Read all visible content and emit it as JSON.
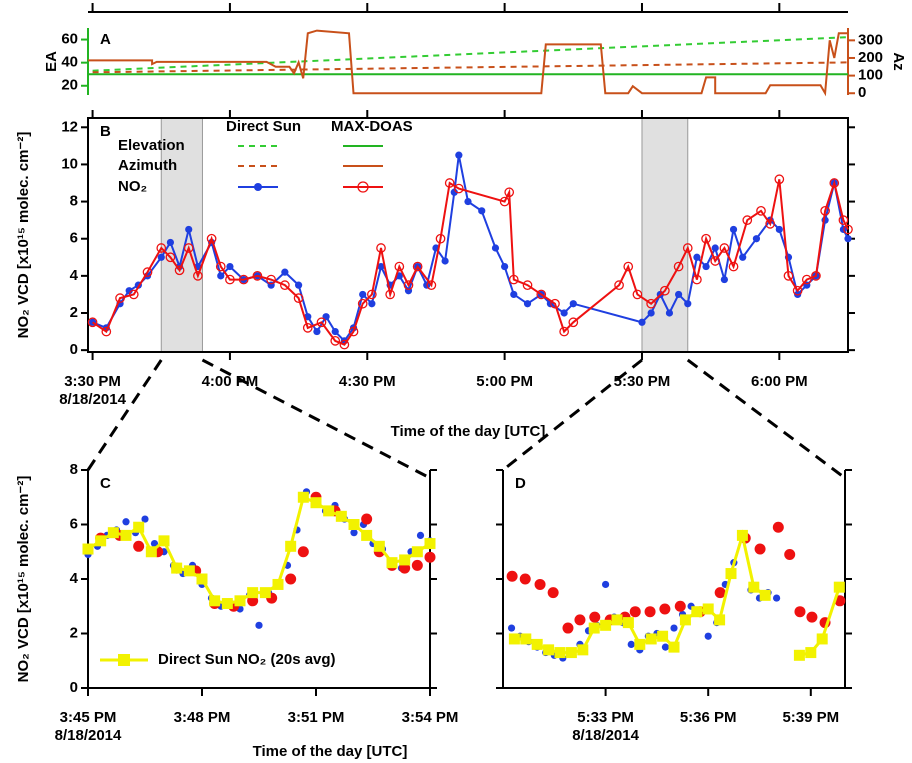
{
  "chart_data": [
    {
      "type": "line",
      "label": "A",
      "ylabel": "EA",
      "y2label": "Az",
      "xlim": [
        "15:29",
        "18:15"
      ],
      "ylim": [
        12,
        70
      ],
      "yticks": [
        20,
        40,
        60
      ],
      "y2lim": [
        -10,
        370
      ],
      "y2ticks": [
        0,
        100,
        200,
        300
      ],
      "ycolor": "#22b422",
      "y2color": "#c8501a",
      "series": [
        {
          "color": "#33cc33",
          "dash": true,
          "x": [
            "15:30",
            "18:15"
          ],
          "values": [
            33,
            62
          ]
        },
        {
          "color": "#c8501a",
          "dash": true,
          "axis": "y2",
          "x": [
            "15:30",
            "18:15"
          ],
          "values": [
            119,
            175
          ]
        },
        {
          "color": "#22b422",
          "x": [
            "15:29",
            "18:15"
          ],
          "values": [
            30,
            30
          ]
        },
        {
          "color": "#c8501a",
          "axis": "y2",
          "x": [
            "15:29",
            "15:43",
            "15:43",
            "15:44",
            "16:08",
            "16:10",
            "16:13",
            "16:14",
            "16:15",
            "16:16",
            "16:17",
            "16:19",
            "16:26",
            "16:27",
            "17:08",
            "17:09",
            "17:21",
            "17:22",
            "17:27",
            "17:28",
            "17:30",
            "17:43",
            "17:44",
            "17:46",
            "17:46",
            "17:57",
            "17:58",
            "18:09",
            "18:10",
            "18:11",
            "18:12",
            "18:13",
            "18:15"
          ],
          "values": [
            186,
            186,
            165,
            178,
            178,
            150,
            150,
            113,
            175,
            85,
            340,
            355,
            340,
            0,
            0,
            277,
            277,
            0,
            0,
            40,
            0,
            0,
            90,
            90,
            0,
            0,
            45,
            45,
            0,
            300,
            200,
            340,
            340
          ]
        }
      ]
    },
    {
      "type": "line",
      "label": "B",
      "ylabel": "NO₂ VCD [x10¹⁵ molec. cm⁻²]",
      "xlabel": "Time of the day [UTC]",
      "xlim": [
        "15:29",
        "18:15"
      ],
      "xticks": [
        {
          "value": "15:30",
          "label": "3:30 PM",
          "date": "8/18/2014"
        },
        {
          "value": "16:00",
          "label": "4:00 PM"
        },
        {
          "value": "16:30",
          "label": "4:30 PM"
        },
        {
          "value": "17:00",
          "label": "5:00 PM"
        },
        {
          "value": "17:30",
          "label": "5:30 PM"
        },
        {
          "value": "18:00",
          "label": "6:00 PM"
        }
      ],
      "ylim": [
        -0.1,
        12.5
      ],
      "yticks": [
        0,
        2,
        4,
        6,
        8,
        10,
        12
      ],
      "legend": {
        "columns": [
          "Direct Sun",
          "MAX-DOAS"
        ],
        "rows": [
          "Elevation",
          "Azimuth",
          "NO₂"
        ]
      },
      "series": [
        {
          "color": "#1f3fe0",
          "marker": "dot",
          "x": [
            "15:30",
            "15:33",
            "15:36",
            "15:38",
            "15:40",
            "15:42",
            "15:45",
            "15:47",
            "15:49",
            "15:51",
            "15:53",
            "15:56",
            "15:58",
            "16:00",
            "16:03",
            "16:06",
            "16:09",
            "16:12",
            "16:15",
            "16:17",
            "16:19",
            "16:21",
            "16:23",
            "16:25",
            "16:27",
            "16:29",
            "16:31",
            "16:33",
            "16:35",
            "16:37",
            "16:39",
            "16:41",
            "16:43",
            "16:45",
            "16:47",
            "16:49",
            "16:50",
            "16:52",
            "16:55",
            "16:58",
            "17:00",
            "17:02",
            "17:05",
            "17:08",
            "17:10",
            "17:13",
            "17:15",
            "17:30",
            "17:32",
            "17:34",
            "17:36",
            "17:38",
            "17:40",
            "17:42",
            "17:44",
            "17:46",
            "17:48",
            "17:50",
            "17:52",
            "17:55",
            "17:58",
            "18:00",
            "18:02",
            "18:04",
            "18:06",
            "18:08",
            "18:10",
            "18:12",
            "18:14",
            "18:15"
          ],
          "values": [
            1.5,
            1.2,
            2.5,
            3.2,
            3.5,
            4.0,
            5.0,
            5.8,
            4.5,
            6.5,
            4.5,
            5.8,
            4.0,
            4.5,
            3.8,
            4.0,
            3.5,
            4.2,
            3.5,
            1.8,
            1.0,
            1.8,
            1.0,
            0.5,
            1.2,
            3.0,
            2.5,
            4.5,
            3.5,
            4.0,
            3.2,
            4.5,
            3.5,
            5.5,
            4.8,
            8.5,
            10.5,
            8.0,
            7.5,
            5.5,
            4.5,
            3.0,
            2.5,
            3.0,
            2.5,
            2.0,
            2.5,
            1.5,
            2.0,
            3.0,
            2.0,
            3.0,
            2.5,
            5.0,
            4.5,
            5.5,
            3.8,
            6.5,
            5.0,
            6.0,
            7.0,
            6.5,
            5.0,
            3.0,
            3.5,
            4.0,
            7.0,
            9.0,
            6.5,
            6.0
          ]
        },
        {
          "color": "#ee1111",
          "marker": "ring",
          "x": [
            "15:30",
            "15:33",
            "15:36",
            "15:39",
            "15:42",
            "15:45",
            "15:47",
            "15:49",
            "15:51",
            "15:53",
            "15:56",
            "15:58",
            "16:00",
            "16:03",
            "16:06",
            "16:09",
            "16:12",
            "16:15",
            "16:17",
            "16:20",
            "16:23",
            "16:25",
            "16:27",
            "16:29",
            "16:31",
            "16:33",
            "16:35",
            "16:37",
            "16:39",
            "16:41",
            "16:44",
            "16:46",
            "16:48",
            "16:50",
            "17:00",
            "17:01",
            "17:02",
            "17:05",
            "17:08",
            "17:11",
            "17:13",
            "17:15",
            "17:25",
            "17:27",
            "17:29",
            "17:32",
            "17:35",
            "17:38",
            "17:40",
            "17:42",
            "17:44",
            "17:46",
            "17:48",
            "17:50",
            "17:53",
            "17:56",
            "17:58",
            "18:00",
            "18:02",
            "18:04",
            "18:06",
            "18:08",
            "18:10",
            "18:12",
            "18:14",
            "18:15"
          ],
          "values": [
            1.5,
            1.0,
            2.8,
            3.0,
            4.2,
            5.5,
            5.0,
            4.3,
            5.5,
            4.0,
            6.0,
            4.5,
            3.8,
            3.8,
            4.0,
            3.8,
            3.5,
            2.8,
            1.2,
            1.5,
            0.5,
            0.3,
            1.0,
            2.5,
            3.0,
            5.5,
            3.0,
            4.5,
            3.5,
            4.5,
            3.5,
            6.0,
            9.0,
            8.7,
            8.0,
            8.5,
            3.8,
            3.5,
            3.0,
            2.5,
            1.0,
            1.5,
            3.5,
            4.5,
            3.0,
            2.5,
            3.2,
            4.5,
            5.5,
            3.8,
            6.0,
            4.8,
            5.5,
            4.5,
            7.0,
            7.5,
            6.8,
            9.2,
            4.0,
            3.2,
            3.8,
            4.0,
            7.5,
            9.0,
            7.0,
            6.5
          ]
        }
      ]
    },
    {
      "type": "line",
      "label": "C",
      "ylabel": "NO₂ VCD [x10¹⁵ molec. cm⁻²]",
      "xlabel": "Time of the day [UTC]",
      "xlim": [
        "15:45",
        "15:54"
      ],
      "xticks": [
        {
          "value": "15:45",
          "label": "3:45 PM",
          "date": "8/18/2014"
        },
        {
          "value": "15:48",
          "label": "3:48 PM"
        },
        {
          "value": "15:51",
          "label": "3:51 PM"
        },
        {
          "value": "15:54",
          "label": "3:54 PM"
        }
      ],
      "ylim": [
        0,
        8
      ],
      "yticks": [
        0,
        2,
        4,
        6,
        8
      ],
      "series": [
        {
          "color": "#1f3fe0",
          "marker": "dot",
          "line": false,
          "x": [
            "15:45:00",
            "15:45:15",
            "15:45:30",
            "15:45:45",
            "15:46:00",
            "15:46:15",
            "15:46:30",
            "15:46:45",
            "15:47:00",
            "15:47:15",
            "15:47:30",
            "15:47:45",
            "15:48:00",
            "15:48:15",
            "15:48:30",
            "15:48:45",
            "15:49:00",
            "15:49:15",
            "15:49:30",
            "15:49:45",
            "15:50:00",
            "15:50:15",
            "15:50:30",
            "15:50:45",
            "15:51:00",
            "15:51:15",
            "15:51:30",
            "15:51:45",
            "15:52:00",
            "15:52:15",
            "15:52:30",
            "15:52:45",
            "15:53:00",
            "15:53:15",
            "15:53:30",
            "15:53:45",
            "15:54:00"
          ],
          "values": [
            4.9,
            5.2,
            5.6,
            5.8,
            6.1,
            5.7,
            6.2,
            5.3,
            5.0,
            4.5,
            4.2,
            4.5,
            3.8,
            3.3,
            3.0,
            3.1,
            2.9,
            3.4,
            2.3,
            3.5,
            3.8,
            4.5,
            5.8,
            7.2,
            6.8,
            6.5,
            6.7,
            6.2,
            5.7,
            6.0,
            5.3,
            5.1,
            4.6,
            4.4,
            5.0,
            5.6,
            5.4
          ]
        },
        {
          "color": "#ee1111",
          "marker": "big",
          "line": false,
          "x": [
            "15:45:20",
            "15:45:50",
            "15:46:20",
            "15:46:50",
            "15:47:20",
            "15:47:50",
            "15:48:20",
            "15:48:50",
            "15:49:20",
            "15:49:50",
            "15:50:20",
            "15:50:40",
            "15:51:00",
            "15:51:30",
            "15:52:00",
            "15:52:20",
            "15:52:40",
            "15:53:00",
            "15:53:20",
            "15:53:40",
            "15:54:00"
          ],
          "values": [
            5.5,
            5.6,
            5.2,
            5.0,
            4.4,
            4.3,
            3.1,
            3.0,
            3.2,
            3.3,
            4.0,
            5.0,
            7.0,
            6.5,
            6.0,
            6.2,
            5.0,
            4.5,
            4.4,
            4.5,
            4.8
          ]
        },
        {
          "name": "Direct Sun NO₂ (20s avg)",
          "color": "#f2f200",
          "marker": "square",
          "x": [
            "15:45:00",
            "15:45:20",
            "15:45:40",
            "15:46:00",
            "15:46:20",
            "15:46:40",
            "15:47:00",
            "15:47:20",
            "15:47:40",
            "15:48:00",
            "15:48:20",
            "15:48:40",
            "15:49:00",
            "15:49:20",
            "15:49:40",
            "15:50:00",
            "15:50:20",
            "15:50:40",
            "15:51:00",
            "15:51:20",
            "15:51:40",
            "15:52:00",
            "15:52:20",
            "15:52:40",
            "15:53:00",
            "15:53:20",
            "15:53:40",
            "15:54:00"
          ],
          "values": [
            5.1,
            5.4,
            5.7,
            5.6,
            5.9,
            5.0,
            5.4,
            4.4,
            4.3,
            4.0,
            3.2,
            3.1,
            3.2,
            3.5,
            3.5,
            3.8,
            5.2,
            7.0,
            6.8,
            6.5,
            6.3,
            6.0,
            5.6,
            5.2,
            4.6,
            4.7,
            5.0,
            5.3
          ]
        }
      ]
    },
    {
      "type": "line",
      "label": "D",
      "xlim": [
        "17:30",
        "17:40"
      ],
      "xticks": [
        {
          "value": "17:33",
          "label": "5:33 PM",
          "date": "8/18/2014"
        },
        {
          "value": "17:36",
          "label": "5:36 PM"
        },
        {
          "value": "17:39",
          "label": "5:39 PM"
        }
      ],
      "ylim": [
        0,
        8
      ],
      "series": [
        {
          "color": "#1f3fe0",
          "marker": "dot",
          "line": false,
          "x": [
            "17:30:15",
            "17:30:30",
            "17:30:45",
            "17:31:00",
            "17:31:15",
            "17:31:30",
            "17:31:45",
            "17:32:00",
            "17:32:15",
            "17:32:30",
            "17:32:45",
            "17:33:00",
            "17:33:15",
            "17:33:30",
            "17:33:45",
            "17:34:00",
            "17:34:15",
            "17:34:30",
            "17:34:45",
            "17:35:00",
            "17:35:15",
            "17:35:30",
            "17:35:45",
            "17:36:00",
            "17:36:15",
            "17:36:30",
            "17:36:45",
            "17:37:00",
            "17:37:15",
            "17:37:30",
            "17:37:45",
            "17:38:00"
          ],
          "values": [
            2.2,
            1.9,
            1.7,
            1.5,
            1.3,
            1.2,
            1.1,
            1.3,
            1.6,
            2.1,
            2.3,
            3.8,
            2.6,
            2.4,
            1.6,
            1.4,
            1.9,
            2.0,
            1.5,
            2.2,
            2.7,
            3.0,
            2.8,
            1.9,
            2.4,
            3.8,
            4.6,
            5.5,
            3.6,
            3.3,
            3.5,
            3.3
          ]
        },
        {
          "color": "#ee1111",
          "marker": "big",
          "line": false,
          "x": [
            "17:30:16",
            "17:30:39",
            "17:31:05",
            "17:31:28",
            "17:31:54",
            "17:32:15",
            "17:32:41",
            "17:33:08",
            "17:33:34",
            "17:33:52",
            "17:34:18",
            "17:34:44",
            "17:35:11",
            "17:35:46",
            "17:36:21",
            "17:37:05",
            "17:37:31",
            "17:38:03",
            "17:38:23",
            "17:38:41",
            "17:39:02",
            "17:39:25",
            "17:39:51"
          ],
          "values": [
            4.1,
            4.0,
            3.8,
            3.5,
            2.2,
            2.5,
            2.6,
            2.5,
            2.6,
            2.8,
            2.8,
            2.9,
            3.0,
            2.8,
            3.5,
            5.5,
            5.1,
            5.9,
            4.9,
            2.8,
            2.6,
            2.4,
            3.2
          ]
        },
        {
          "color": "#f2f200",
          "marker": "square",
          "x": [
            "17:30:20",
            "17:30:40",
            "17:31:00",
            "17:31:20",
            "17:31:40",
            "17:32:00",
            "17:32:20",
            "17:32:40",
            "17:33:00",
            "17:33:20",
            "17:33:40",
            "17:34:00",
            "17:34:20",
            "17:34:40",
            "17:35:00",
            "17:35:20",
            "17:35:40",
            "17:36:00",
            "17:36:20",
            "17:36:40",
            "17:37:00",
            "17:37:20",
            "17:37:40",
            "17:38:00",
            "17:38:40",
            "17:39:00",
            "17:39:20",
            "17:39:50"
          ],
          "values": [
            1.8,
            1.8,
            1.6,
            1.4,
            1.3,
            1.3,
            1.4,
            2.2,
            2.3,
            2.5,
            2.4,
            1.6,
            1.8,
            1.9,
            1.5,
            2.5,
            2.8,
            2.9,
            2.5,
            4.2,
            5.6,
            3.7,
            3.4,
            null,
            1.2,
            1.3,
            1.8,
            3.7
          ]
        }
      ]
    }
  ]
}
